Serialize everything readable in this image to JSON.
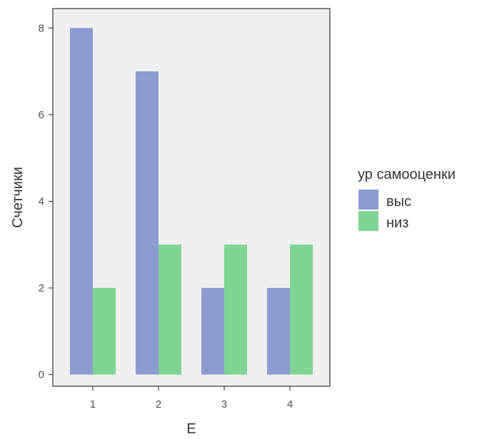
{
  "chart_data": {
    "type": "bar",
    "categories": [
      "1",
      "2",
      "3",
      "4"
    ],
    "series": [
      {
        "name": "выс",
        "values": [
          8,
          7,
          2,
          2
        ],
        "color": "#8c9bd0"
      },
      {
        "name": "низ",
        "values": [
          2,
          3,
          3,
          3
        ],
        "color": "#80d493"
      }
    ],
    "xlabel": "E",
    "ylabel": "Счетчики",
    "ylim": [
      -0.27,
      8.45
    ],
    "yticks": [
      0,
      2,
      4,
      6,
      8
    ],
    "ytick_labels": [
      "0",
      "2",
      "4",
      "6",
      "8"
    ],
    "grid": false,
    "legend": {
      "title": "ур самооценки",
      "position": "right"
    },
    "panel_background": "#efefef"
  }
}
